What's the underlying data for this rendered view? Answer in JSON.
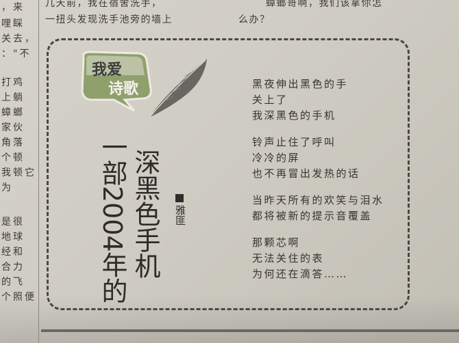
{
  "left_column": [
    "，来",
    "哩睬",
    "关去，",
    "：\"不",
    "",
    "打鸡",
    "上躺",
    "蟑螂",
    "家伙",
    "角落",
    "个顿",
    "我顿它",
    "为",
    "",
    "是很",
    "地球",
    "经和",
    "合力",
    "的飞",
    "个照便"
  ],
  "top_text": {
    "line1_left": "几天前，我在宿舍洗手，",
    "line2_left": "一扭头发现洗手池旁的墙上",
    "line1_right": "蟑螂哥啊，我们该拿你怎",
    "line2_right": "么办？"
  },
  "badge": {
    "line1": "我爱",
    "line2": "诗歌",
    "icon": "feather-icon"
  },
  "title": {
    "col1": "深黑色手机",
    "col2": "一部2004年的"
  },
  "author": "雅匪",
  "poem": [
    [
      "黑夜伸出黑色的手",
      "关上了",
      "我深黑色的手机"
    ],
    [
      "铃声止住了呼叫",
      "冷冷的屏",
      "也不再冒出发热的话"
    ],
    [
      "当昨天所有的欢笑与泪水",
      "都将被新的提示音覆盖"
    ],
    [
      "那颗芯啊",
      "无法关住的表",
      "为何还在滴答……"
    ]
  ],
  "colors": {
    "paper": "#d2cfc6",
    "ink": "#36342f",
    "badge_green": "#7a8f5a"
  }
}
